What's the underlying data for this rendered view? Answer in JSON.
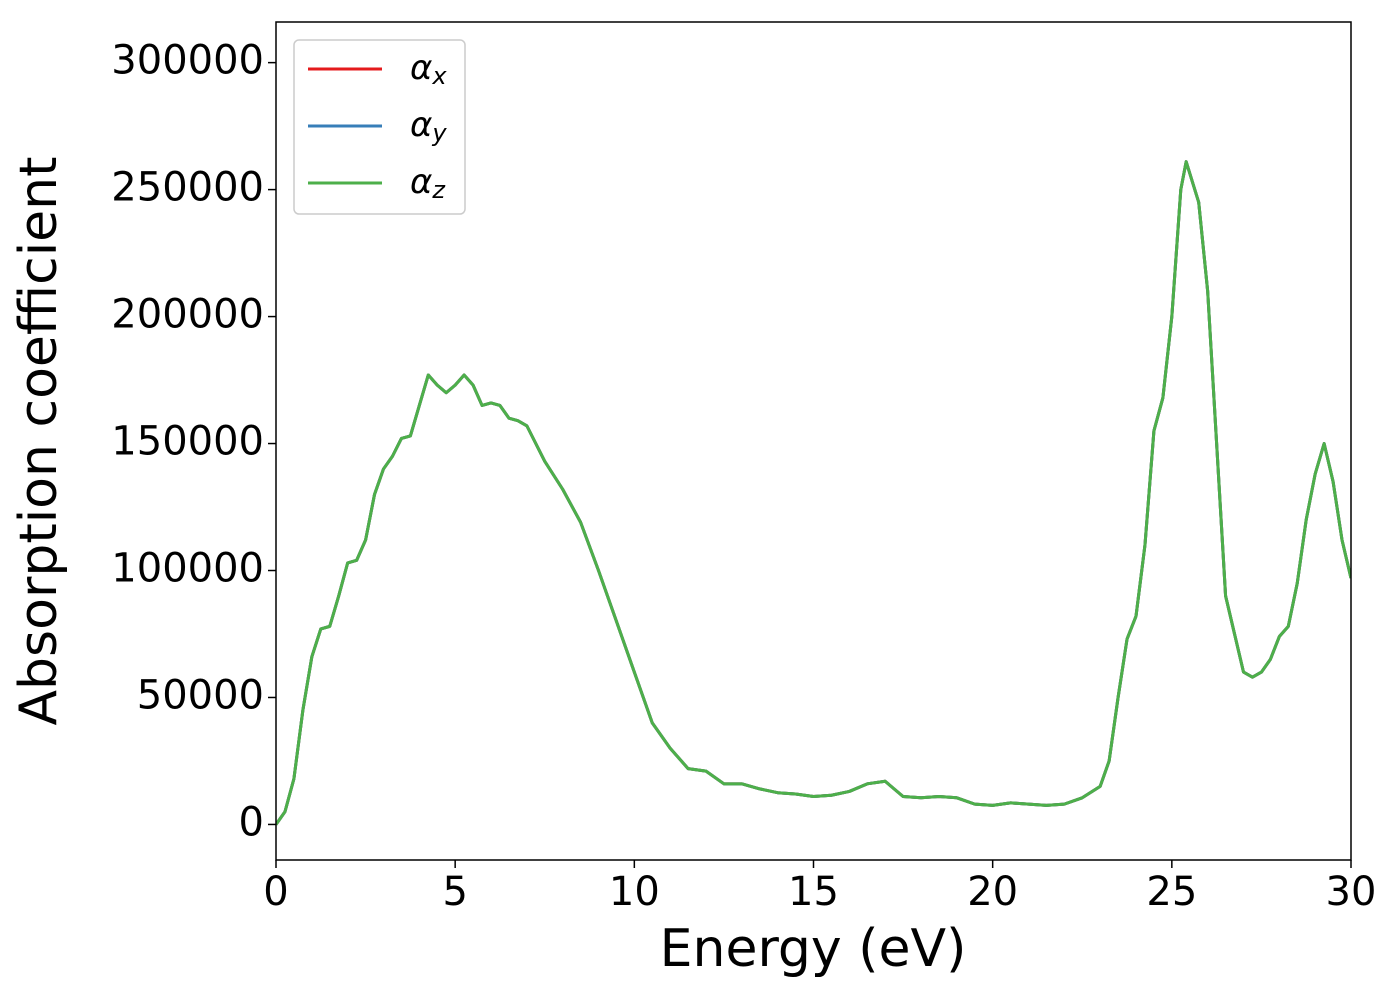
{
  "chart_data": {
    "type": "line",
    "xlabel": "Energy (eV)",
    "ylabel": "Absorption coefficient",
    "x": [
      0,
      0.25,
      0.5,
      0.75,
      1.0,
      1.25,
      1.5,
      1.75,
      2.0,
      2.25,
      2.5,
      2.75,
      3.0,
      3.25,
      3.5,
      3.75,
      4.0,
      4.25,
      4.5,
      4.75,
      5.0,
      5.25,
      5.5,
      5.75,
      6.0,
      6.25,
      6.5,
      6.75,
      7.0,
      7.5,
      8.0,
      8.5,
      9.0,
      9.5,
      10.0,
      10.5,
      11.0,
      11.5,
      12.0,
      12.5,
      13.0,
      13.5,
      14.0,
      14.5,
      15.0,
      15.5,
      16.0,
      16.5,
      17.0,
      17.5,
      18.0,
      18.5,
      19.0,
      19.5,
      20.0,
      20.5,
      21.0,
      21.5,
      22.0,
      22.5,
      23.0,
      23.25,
      23.5,
      23.75,
      24.0,
      24.25,
      24.5,
      24.75,
      25.0,
      25.25,
      25.4,
      25.75,
      26.0,
      26.25,
      26.5,
      26.75,
      27.0,
      27.25,
      27.5,
      27.75,
      28.0,
      28.25,
      28.5,
      28.75,
      29.0,
      29.25,
      29.5,
      29.75,
      30.0
    ],
    "series": [
      {
        "name": "αx",
        "color": "#e41a1c",
        "values": [
          0,
          5000,
          18000,
          45000,
          66000,
          77000,
          78000,
          90000,
          103000,
          104000,
          112000,
          130000,
          140000,
          145000,
          152000,
          153000,
          165000,
          177000,
          173000,
          170000,
          173000,
          177000,
          173000,
          165000,
          166000,
          165000,
          160000,
          159000,
          157000,
          143000,
          132000,
          119000,
          100000,
          80000,
          60000,
          40000,
          30000,
          22000,
          21000,
          16000,
          16000,
          14000,
          12500,
          12000,
          11000,
          11500,
          13000,
          16000,
          17000,
          11000,
          10500,
          11000,
          10500,
          8000,
          7500,
          8500,
          8000,
          7500,
          8000,
          10500,
          15000,
          25000,
          50000,
          73000,
          82000,
          110000,
          155000,
          168000,
          200000,
          250000,
          261000,
          245000,
          210000,
          150000,
          90000,
          75000,
          60000,
          58000,
          60000,
          65000,
          74000,
          78000,
          95000,
          120000,
          138000,
          150000,
          135000,
          112000,
          97000
        ]
      },
      {
        "name": "αy",
        "color": "#377eb8",
        "values": [
          0,
          5000,
          18000,
          45000,
          66000,
          77000,
          78000,
          90000,
          103000,
          104000,
          112000,
          130000,
          140000,
          145000,
          152000,
          153000,
          165000,
          177000,
          173000,
          170000,
          173000,
          177000,
          173000,
          165000,
          166000,
          165000,
          160000,
          159000,
          157000,
          143000,
          132000,
          119000,
          100000,
          80000,
          60000,
          40000,
          30000,
          22000,
          21000,
          16000,
          16000,
          14000,
          12500,
          12000,
          11000,
          11500,
          13000,
          16000,
          17000,
          11000,
          10500,
          11000,
          10500,
          8000,
          7500,
          8500,
          8000,
          7500,
          8000,
          10500,
          15000,
          25000,
          50000,
          73000,
          82000,
          110000,
          155000,
          168000,
          200000,
          250000,
          261000,
          245000,
          210000,
          150000,
          90000,
          75000,
          60000,
          58000,
          60000,
          65000,
          74000,
          78000,
          95000,
          120000,
          138000,
          150000,
          135000,
          112000,
          97000
        ]
      },
      {
        "name": "αz",
        "color": "#4daf4a",
        "values": [
          0,
          5000,
          18000,
          45000,
          66000,
          77000,
          78000,
          90000,
          103000,
          104000,
          112000,
          130000,
          140000,
          145000,
          152000,
          153000,
          165000,
          177000,
          173000,
          170000,
          173000,
          177000,
          173000,
          165000,
          166000,
          165000,
          160000,
          159000,
          157000,
          143000,
          132000,
          119000,
          100000,
          80000,
          60000,
          40000,
          30000,
          22000,
          21000,
          16000,
          16000,
          14000,
          12500,
          12000,
          11000,
          11500,
          13000,
          16000,
          17000,
          11000,
          10500,
          11000,
          10500,
          8000,
          7500,
          8500,
          8000,
          7500,
          8000,
          10500,
          15000,
          25000,
          50000,
          73000,
          82000,
          110000,
          155000,
          168000,
          200000,
          250000,
          261000,
          245000,
          210000,
          150000,
          90000,
          75000,
          60000,
          58000,
          60000,
          65000,
          74000,
          78000,
          95000,
          120000,
          138000,
          150000,
          135000,
          112000,
          97000
        ]
      }
    ],
    "xlim": [
      0,
      30
    ],
    "xticks": [
      0,
      5,
      10,
      15,
      20,
      25,
      30
    ],
    "ylim": [
      -14000,
      316000
    ],
    "yticks": [
      0,
      50000,
      100000,
      150000,
      200000,
      250000,
      300000
    ],
    "legend": "upper left",
    "grid": false
  }
}
